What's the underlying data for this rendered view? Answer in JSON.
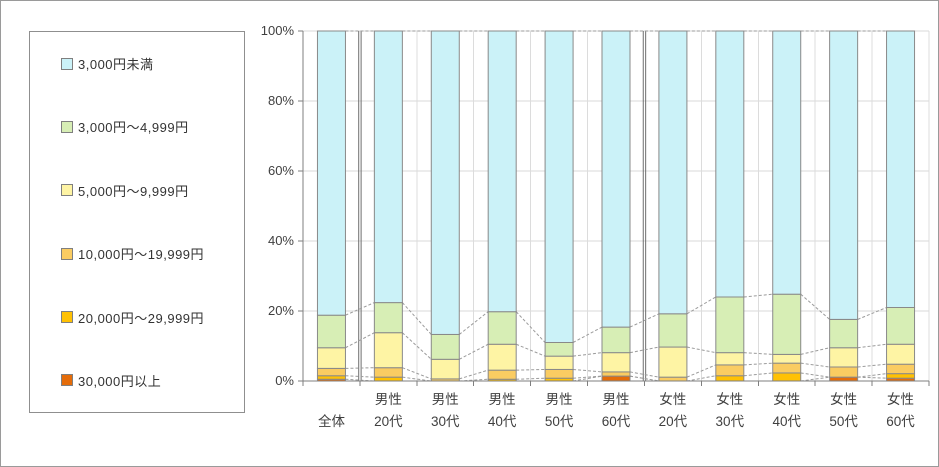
{
  "window": {
    "background": "#ffffff",
    "frame_border": "#9a9a9a"
  },
  "legend": {
    "position": "left",
    "items": [
      {
        "label": "3,000円未満",
        "color": "#CBF2F8"
      },
      {
        "label": "3,000円〜4,999円",
        "color": "#D7EEB5"
      },
      {
        "label": "5,000円〜9,999円",
        "color": "#FEF4A4"
      },
      {
        "label": "10,000円〜19,999円",
        "color": "#FACC62"
      },
      {
        "label": "20,000円〜29,999円",
        "color": "#FFC103"
      },
      {
        "label": "30,000円以上",
        "color": "#E46C0A"
      }
    ]
  },
  "chart_data": {
    "type": "bar",
    "stacked": true,
    "percent": true,
    "title": "",
    "xlabel": "",
    "ylabel": "",
    "ylim": [
      0,
      100
    ],
    "ytick_labels": [
      "0%",
      "20%",
      "40%",
      "60%",
      "80%",
      "100%"
    ],
    "grid": true,
    "legend_position": "left",
    "group_separators_after": [
      0,
      5
    ],
    "series_lines": "dashed",
    "categories": [
      {
        "line1": "",
        "line2": "全体"
      },
      {
        "line1": "男性",
        "line2": "20代"
      },
      {
        "line1": "男性",
        "line2": "30代"
      },
      {
        "line1": "男性",
        "line2": "40代"
      },
      {
        "line1": "男性",
        "line2": "50代"
      },
      {
        "line1": "男性",
        "line2": "60代"
      },
      {
        "line1": "女性",
        "line2": "20代"
      },
      {
        "line1": "女性",
        "line2": "30代"
      },
      {
        "line1": "女性",
        "line2": "40代"
      },
      {
        "line1": "女性",
        "line2": "50代"
      },
      {
        "line1": "女性",
        "line2": "60代"
      }
    ],
    "series": [
      {
        "name": "3,000円未満",
        "color": "#CBF2F8",
        "values": [
          81.2,
          77.6,
          86.7,
          80.2,
          89.0,
          84.6,
          80.8,
          76.0,
          75.2,
          82.4,
          79.0
        ]
      },
      {
        "name": "3,000円〜4,999円",
        "color": "#D7EEB5",
        "values": [
          9.3,
          8.6,
          7.1,
          9.3,
          3.9,
          7.3,
          9.5,
          15.9,
          17.2,
          8.1,
          10.5
        ]
      },
      {
        "name": "5,000円〜9,999円",
        "color": "#FEF4A4",
        "values": [
          5.9,
          10.0,
          5.6,
          7.4,
          3.8,
          5.5,
          8.6,
          3.5,
          2.5,
          5.5,
          5.7
        ]
      },
      {
        "name": "10,000円〜19,999円",
        "color": "#FACC62",
        "values": [
          2.1,
          2.7,
          0.6,
          2.6,
          2.5,
          1.2,
          1.1,
          3.1,
          2.8,
          2.9,
          2.7
        ]
      },
      {
        "name": "20,000円〜29,999円",
        "color": "#FFC103",
        "values": [
          1.0,
          1.1,
          0.0,
          0.5,
          0.8,
          0.0,
          0.0,
          1.5,
          2.3,
          0.0,
          1.3
        ]
      },
      {
        "name": "30,000円以上",
        "color": "#E46C0A",
        "values": [
          0.5,
          0.0,
          0.0,
          0.0,
          0.0,
          1.4,
          0.0,
          0.0,
          0.0,
          1.1,
          0.8
        ]
      }
    ]
  }
}
